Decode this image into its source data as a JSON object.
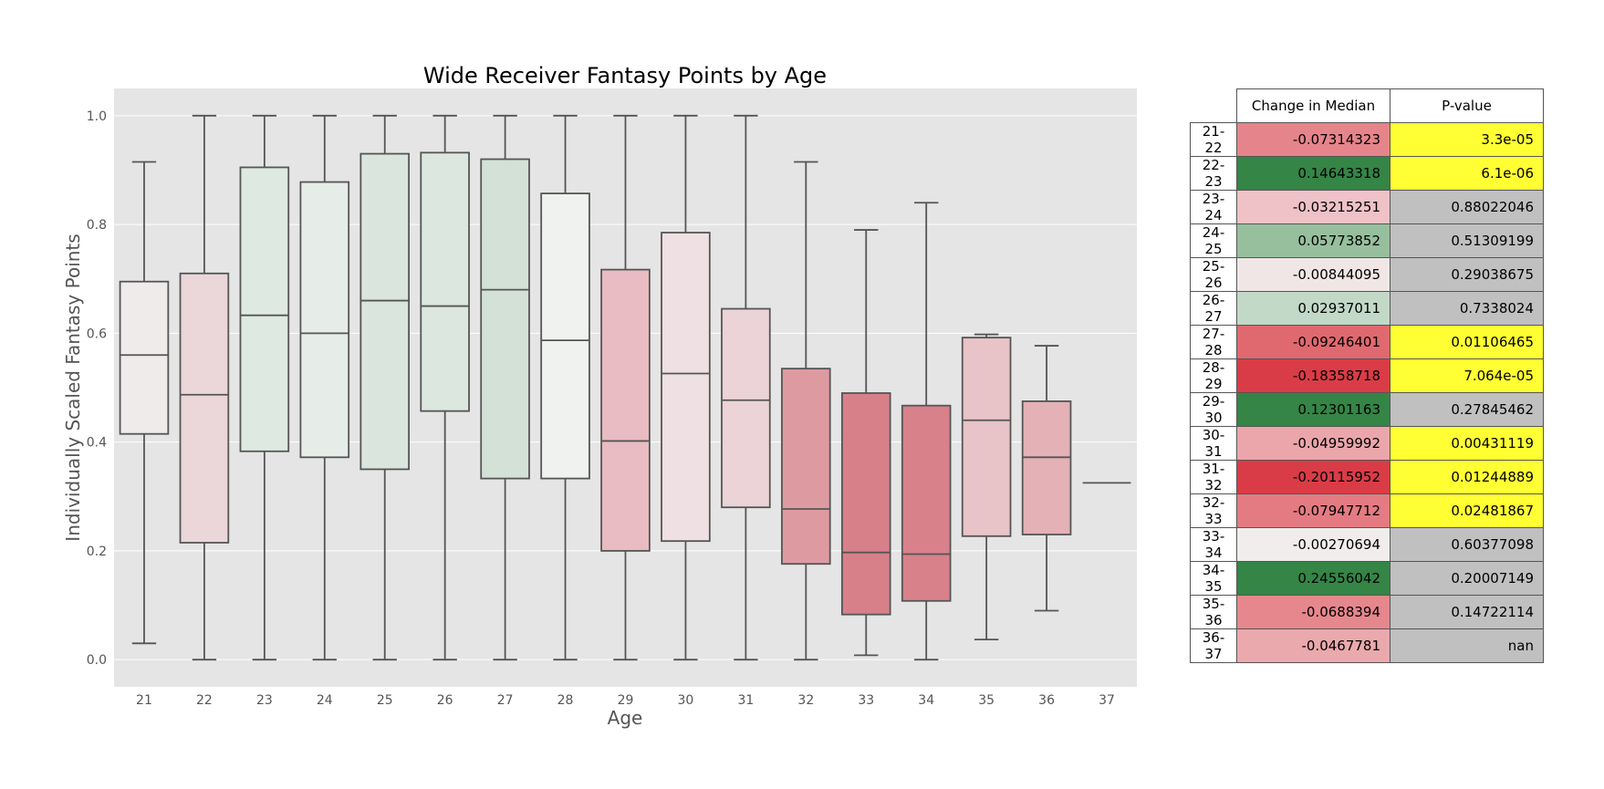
{
  "chart_data": [
    {
      "type": "box",
      "title": "Wide Receiver Fantasy Points by Age",
      "xlabel": "Age",
      "ylabel": "Individually Scaled Fantasy Points",
      "ylim": [
        -0.05,
        1.05
      ],
      "yticks": [
        "0.0",
        "0.2",
        "0.4",
        "0.6",
        "0.8",
        "1.0"
      ],
      "grid": true,
      "categories": [
        "21",
        "22",
        "23",
        "24",
        "25",
        "26",
        "27",
        "28",
        "29",
        "30",
        "31",
        "32",
        "33",
        "34",
        "35",
        "36",
        "37"
      ],
      "boxes": [
        {
          "min": 0.03,
          "q1": 0.415,
          "median": 0.56,
          "q3": 0.695,
          "max": 0.915,
          "color": "#efebeb"
        },
        {
          "min": 0.0,
          "q1": 0.215,
          "median": 0.487,
          "q3": 0.71,
          "max": 1.0,
          "color": "#ebd6da"
        },
        {
          "min": 0.0,
          "q1": 0.383,
          "median": 0.633,
          "q3": 0.905,
          "max": 1.0,
          "color": "#dee9e1"
        },
        {
          "min": 0.0,
          "q1": 0.372,
          "median": 0.6,
          "q3": 0.878,
          "max": 1.0,
          "color": "#e6ede8"
        },
        {
          "min": 0.0,
          "q1": 0.35,
          "median": 0.66,
          "q3": 0.93,
          "max": 1.0,
          "color": "#dae5dd"
        },
        {
          "min": 0.0,
          "q1": 0.457,
          "median": 0.65,
          "q3": 0.932,
          "max": 1.0,
          "color": "#dce7df"
        },
        {
          "min": 0.0,
          "q1": 0.333,
          "median": 0.68,
          "q3": 0.92,
          "max": 1.0,
          "color": "#d3e1d6"
        },
        {
          "min": 0.0,
          "q1": 0.333,
          "median": 0.587,
          "q3": 0.857,
          "max": 1.0,
          "color": "#f0f2f0"
        },
        {
          "min": 0.0,
          "q1": 0.2,
          "median": 0.402,
          "q3": 0.717,
          "max": 1.0,
          "color": "#e8bcc2"
        },
        {
          "min": 0.0,
          "q1": 0.218,
          "median": 0.526,
          "q3": 0.785,
          "max": 1.0,
          "color": "#efe1e3"
        },
        {
          "min": 0.0,
          "q1": 0.28,
          "median": 0.477,
          "q3": 0.645,
          "max": 1.0,
          "color": "#ebd3d7"
        },
        {
          "min": 0.0,
          "q1": 0.176,
          "median": 0.277,
          "q3": 0.535,
          "max": 0.915,
          "color": "#de9aa1"
        },
        {
          "min": 0.008,
          "q1": 0.083,
          "median": 0.197,
          "q3": 0.49,
          "max": 0.79,
          "color": "#d8808a"
        },
        {
          "min": 0.0,
          "q1": 0.108,
          "median": 0.194,
          "q3": 0.467,
          "max": 0.84,
          "color": "#d8818b"
        },
        {
          "min": 0.037,
          "q1": 0.227,
          "median": 0.44,
          "q3": 0.592,
          "max": 0.598,
          "color": "#e8c3c8"
        },
        {
          "min": 0.09,
          "q1": 0.23,
          "median": 0.372,
          "q3": 0.475,
          "max": 0.577,
          "color": "#e3b1b6"
        },
        {
          "min": 0.325,
          "q1": 0.325,
          "median": 0.325,
          "q3": 0.325,
          "max": 0.325,
          "color": "#e5e5e5"
        }
      ]
    },
    {
      "type": "table",
      "columns": [
        "Change in Median",
        "P-value"
      ],
      "rows": [
        {
          "label": "21-22",
          "change": "-0.07314323",
          "pvalue": "3.3e-05",
          "change_color": "#e6848b",
          "pvalue_color": "#ffff33"
        },
        {
          "label": "22-23",
          "change": "0.14643318",
          "pvalue": "6.1e-06",
          "change_color": "#358546",
          "pvalue_color": "#ffff33"
        },
        {
          "label": "23-24",
          "change": "-0.03215251",
          "pvalue": "0.88022046",
          "change_color": "#eec2c6",
          "pvalue_color": "#c0c0c0"
        },
        {
          "label": "24-25",
          "change": "0.05773852",
          "pvalue": "0.51309199",
          "change_color": "#97bf9e",
          "pvalue_color": "#c0c0c0"
        },
        {
          "label": "25-26",
          "change": "-0.00844095",
          "pvalue": "0.29038675",
          "change_color": "#f1e6e6",
          "pvalue_color": "#c0c0c0"
        },
        {
          "label": "26-27",
          "change": "0.02937011",
          "pvalue": "0.7338024",
          "change_color": "#c2d9c7",
          "pvalue_color": "#c0c0c0"
        },
        {
          "label": "27-28",
          "change": "-0.09246401",
          "pvalue": "0.01106465",
          "change_color": "#e06970",
          "pvalue_color": "#ffff33"
        },
        {
          "label": "28-29",
          "change": "-0.18358718",
          "pvalue": "7.064e-05",
          "change_color": "#da3c47",
          "pvalue_color": "#ffff33"
        },
        {
          "label": "29-30",
          "change": "0.12301163",
          "pvalue": "0.27845462",
          "change_color": "#358546",
          "pvalue_color": "#c0c0c0"
        },
        {
          "label": "30-31",
          "change": "-0.04959992",
          "pvalue": "0.00431119",
          "change_color": "#eaa6ab",
          "pvalue_color": "#ffff33"
        },
        {
          "label": "31-32",
          "change": "-0.20115952",
          "pvalue": "0.01244889",
          "change_color": "#da3c47",
          "pvalue_color": "#ffff33"
        },
        {
          "label": "32-33",
          "change": "-0.07947712",
          "pvalue": "0.02481867",
          "change_color": "#e47b82",
          "pvalue_color": "#ffff33"
        },
        {
          "label": "33-34",
          "change": "-0.00270694",
          "pvalue": "0.60377098",
          "change_color": "#f1eded",
          "pvalue_color": "#c0c0c0"
        },
        {
          "label": "34-35",
          "change": "0.24556042",
          "pvalue": "0.20007149",
          "change_color": "#358546",
          "pvalue_color": "#c0c0c0"
        },
        {
          "label": "35-36",
          "change": "-0.0688394",
          "pvalue": "0.14722114",
          "change_color": "#e6878d",
          "pvalue_color": "#c0c0c0"
        },
        {
          "label": "36-37",
          "change": "-0.0467781",
          "pvalue": "nan",
          "change_color": "#eaa9ad",
          "pvalue_color": "#c0c0c0"
        }
      ]
    }
  ]
}
